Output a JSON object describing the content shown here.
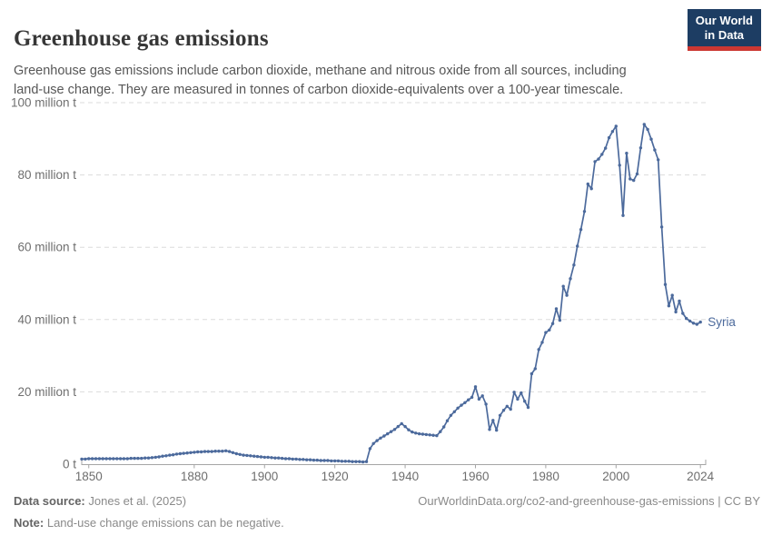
{
  "theme": {
    "line_color": "#4C6A9C",
    "grid_color": "#DBDBDB",
    "axis_color": "#A5A5A5",
    "axis_text_color": "#6E6E6E",
    "logo_bg": "#1D3D63",
    "logo_accent": "#CC3732"
  },
  "header": {
    "title": "Greenhouse gas emissions",
    "subtitle": "Greenhouse gas emissions include carbon dioxide, methane and nitrous oxide from all sources, including land-use change. They are measured in tonnes of carbon dioxide-equivalents over a 100-year timescale.",
    "logo_line1": "Our World",
    "logo_line2": "in Data"
  },
  "chart_data": {
    "type": "line",
    "title": "Greenhouse gas emissions",
    "entity": "Syria",
    "values_unit": "million tonnes of CO2-equivalents",
    "xlim": [
      1848,
      2026
    ],
    "ylim": [
      0,
      100
    ],
    "grid": "horizontal-dashed",
    "legend": "entity-label-at-line-end",
    "x_ticks": [
      1850,
      1880,
      1900,
      1920,
      1940,
      1960,
      1980,
      2000,
      2024
    ],
    "y_ticks": [
      {
        "value": 0,
        "label": "0 t"
      },
      {
        "value": 20,
        "label": "20 million t"
      },
      {
        "value": 40,
        "label": "40 million t"
      },
      {
        "value": 60,
        "label": "60 million t"
      },
      {
        "value": 80,
        "label": "80 million t"
      },
      {
        "value": 100,
        "label": "100 million t"
      }
    ],
    "x_start": 1848,
    "x_end": 2024,
    "series": [
      {
        "name": "Syria",
        "color": "#4C6A9C",
        "values": [
          1.4,
          1.4,
          1.5,
          1.5,
          1.5,
          1.5,
          1.5,
          1.5,
          1.5,
          1.5,
          1.5,
          1.5,
          1.5,
          1.5,
          1.6,
          1.6,
          1.6,
          1.6,
          1.7,
          1.7,
          1.8,
          1.9,
          2.0,
          2.2,
          2.3,
          2.5,
          2.6,
          2.8,
          2.9,
          3.0,
          3.1,
          3.2,
          3.3,
          3.4,
          3.4,
          3.5,
          3.5,
          3.5,
          3.6,
          3.6,
          3.6,
          3.7,
          3.5,
          3.2,
          2.9,
          2.7,
          2.5,
          2.4,
          2.3,
          2.2,
          2.1,
          2.0,
          1.9,
          1.9,
          1.8,
          1.7,
          1.7,
          1.6,
          1.5,
          1.5,
          1.4,
          1.4,
          1.3,
          1.3,
          1.2,
          1.2,
          1.1,
          1.1,
          1.0,
          1.0,
          1.0,
          0.9,
          0.9,
          0.9,
          0.8,
          0.8,
          0.8,
          0.7,
          0.7,
          0.7,
          0.6,
          0.7,
          4.3,
          5.7,
          6.5,
          7.2,
          7.8,
          8.4,
          9.0,
          9.6,
          10.4,
          11.2,
          10.4,
          9.5,
          8.9,
          8.6,
          8.4,
          8.3,
          8.2,
          8.1,
          8.0,
          7.9,
          9.0,
          10.3,
          12.0,
          13.5,
          14.5,
          15.5,
          16.3,
          17.0,
          17.8,
          18.5,
          21.4,
          18.0,
          18.9,
          16.6,
          9.6,
          12.1,
          9.4,
          13.5,
          14.9,
          16.0,
          15.2,
          19.9,
          18.0,
          19.7,
          17.4,
          15.7,
          25.0,
          26.4,
          31.7,
          33.7,
          36.4,
          37.1,
          38.9,
          43.0,
          39.8,
          49.2,
          46.7,
          51.3,
          55.1,
          60.3,
          64.9,
          69.9,
          77.5,
          76.2,
          83.7,
          84.4,
          85.7,
          87.4,
          90.3,
          92.0,
          93.5,
          82.7,
          68.8,
          86.0,
          78.9,
          78.5,
          80.3,
          87.5,
          94.0,
          92.6,
          89.9,
          86.9,
          84.2,
          65.6,
          49.7,
          43.8,
          46.7,
          42.1,
          45.1,
          41.7,
          40.3,
          39.6,
          39.0,
          38.7,
          39.3
        ]
      }
    ]
  },
  "footer": {
    "data_source_label": "Data source:",
    "data_source_value": "Jones et al. (2025)",
    "link_text": "OurWorldinData.org/co2-and-greenhouse-gas-emissions | CC BY",
    "note_label": "Note:",
    "note_value": "Land-use change emissions can be negative."
  }
}
